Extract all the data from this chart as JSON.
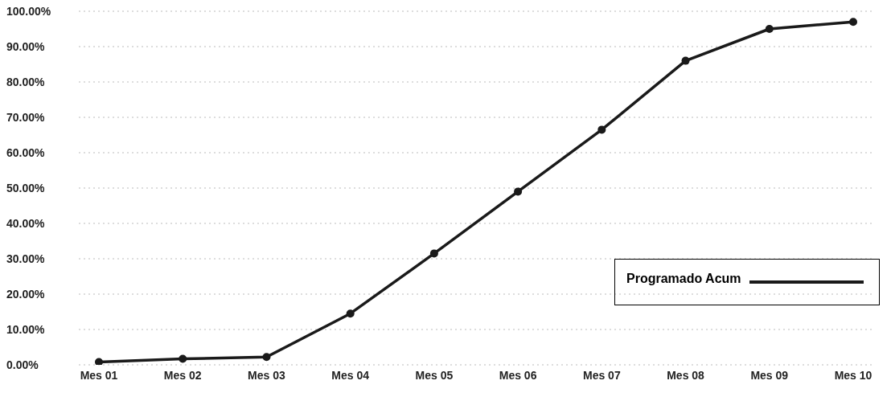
{
  "chart_data": {
    "type": "line",
    "categories": [
      "Mes 01",
      "Mes 02",
      "Mes 03",
      "Mes 04",
      "Mes 05",
      "Mes 06",
      "Mes 07",
      "Mes 08",
      "Mes 09",
      "Mes 10"
    ],
    "series": [
      {
        "name": "Programado Acum",
        "color": "#1a1a1a",
        "values": [
          0.8,
          1.7,
          2.2,
          14.5,
          31.5,
          49,
          66.5,
          86,
          95,
          97
        ]
      }
    ],
    "ylim": [
      0,
      100
    ],
    "yticks": [
      {
        "value": 0,
        "label": "0.00%"
      },
      {
        "value": 10,
        "label": "10.00%"
      },
      {
        "value": 20,
        "label": "20.00%"
      },
      {
        "value": 30,
        "label": "30.00%"
      },
      {
        "value": 40,
        "label": "40.00%"
      },
      {
        "value": 50,
        "label": "50.00%"
      },
      {
        "value": 60,
        "label": "60.00%"
      },
      {
        "value": 70,
        "label": "70.00%"
      },
      {
        "value": 80,
        "label": "80.00%"
      },
      {
        "value": 90,
        "label": "90.00%"
      },
      {
        "value": 100,
        "label": "100.00%"
      }
    ],
    "grid": "y",
    "legend": "bottom right",
    "marker": "circle",
    "line_style": "solid"
  }
}
